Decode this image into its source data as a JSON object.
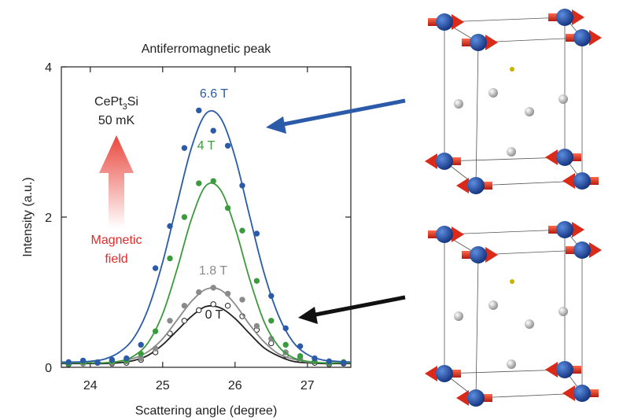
{
  "chart_data": {
    "type": "scatter",
    "title": "Antiferromagnetic peak",
    "x_label": "Scattering angle (degree)",
    "y_label": "Intensity (a.u.)",
    "xlim": [
      23.6,
      27.6
    ],
    "ylim": [
      0,
      4
    ],
    "xticks": [
      24,
      25,
      26,
      27
    ],
    "yticks": [
      0,
      2,
      4
    ],
    "x": [
      23.7,
      23.9,
      24.1,
      24.3,
      24.5,
      24.7,
      24.9,
      25.1,
      25.3,
      25.5,
      25.7,
      25.9,
      26.1,
      26.3,
      26.5,
      26.7,
      26.9,
      27.1,
      27.3,
      27.5
    ],
    "fit_x": [
      23.6,
      23.8,
      24.0,
      24.2,
      24.4,
      24.6,
      24.8,
      25.0,
      25.2,
      25.4,
      25.6,
      25.8,
      26.0,
      26.2,
      26.4,
      26.6,
      26.8,
      27.0,
      27.2,
      27.4,
      27.6
    ],
    "series": [
      {
        "name": "6.6 T",
        "color": "#2b5ba8",
        "marker": "filled",
        "values": [
          0.07,
          0.09,
          0.06,
          0.1,
          0.12,
          0.3,
          1.32,
          1.88,
          2.92,
          3.42,
          3.15,
          2.95,
          2.42,
          1.78,
          0.95,
          0.52,
          0.28,
          0.12,
          0.08,
          0.06
        ],
        "fit": [
          0.07,
          0.07,
          0.08,
          0.11,
          0.2,
          0.39,
          0.78,
          1.4,
          2.18,
          2.93,
          3.38,
          3.32,
          2.8,
          2.02,
          1.26,
          0.69,
          0.34,
          0.17,
          0.1,
          0.08,
          0.07
        ]
      },
      {
        "name": "4 T",
        "color": "#3b9a3e",
        "marker": "filled",
        "values": [
          0.05,
          0.07,
          0.06,
          0.08,
          0.09,
          0.18,
          0.48,
          1.45,
          2.0,
          2.45,
          2.48,
          2.12,
          1.82,
          1.15,
          0.62,
          0.3,
          0.15,
          0.08,
          0.06,
          0.07
        ],
        "fit": [
          0.06,
          0.06,
          0.06,
          0.06,
          0.08,
          0.15,
          0.33,
          0.71,
          1.31,
          1.98,
          2.42,
          2.36,
          1.86,
          1.18,
          0.61,
          0.28,
          0.13,
          0.08,
          0.06,
          0.06,
          0.06
        ]
      },
      {
        "name": "1.8 T",
        "color": "#8a8a8a",
        "marker": "filled",
        "values": [
          0.06,
          0.05,
          0.07,
          0.06,
          0.08,
          0.12,
          0.25,
          0.62,
          0.82,
          1.0,
          1.06,
          0.98,
          0.9,
          0.55,
          0.38,
          0.2,
          0.12,
          0.08,
          0.05,
          0.06
        ],
        "fit": [
          0.06,
          0.06,
          0.06,
          0.06,
          0.08,
          0.12,
          0.21,
          0.38,
          0.63,
          0.88,
          1.04,
          1.03,
          0.84,
          0.57,
          0.34,
          0.18,
          0.11,
          0.07,
          0.06,
          0.06,
          0.06
        ]
      },
      {
        "name": "0 T",
        "color": "#222222",
        "marker": "open",
        "values": [
          0.04,
          0.05,
          0.06,
          0.05,
          0.06,
          0.1,
          0.2,
          0.45,
          0.62,
          0.76,
          0.84,
          0.82,
          0.68,
          0.5,
          0.32,
          0.16,
          0.1,
          0.06,
          0.04,
          0.05
        ],
        "fit": [
          0.05,
          0.05,
          0.05,
          0.05,
          0.06,
          0.09,
          0.16,
          0.3,
          0.49,
          0.68,
          0.81,
          0.79,
          0.65,
          0.45,
          0.26,
          0.15,
          0.08,
          0.06,
          0.05,
          0.05,
          0.05
        ]
      }
    ],
    "annotations": {
      "formula": [
        "CePt",
        "3",
        "Si"
      ],
      "temperature": "50 mK",
      "field_label": [
        "Magnetic",
        "field"
      ]
    }
  }
}
